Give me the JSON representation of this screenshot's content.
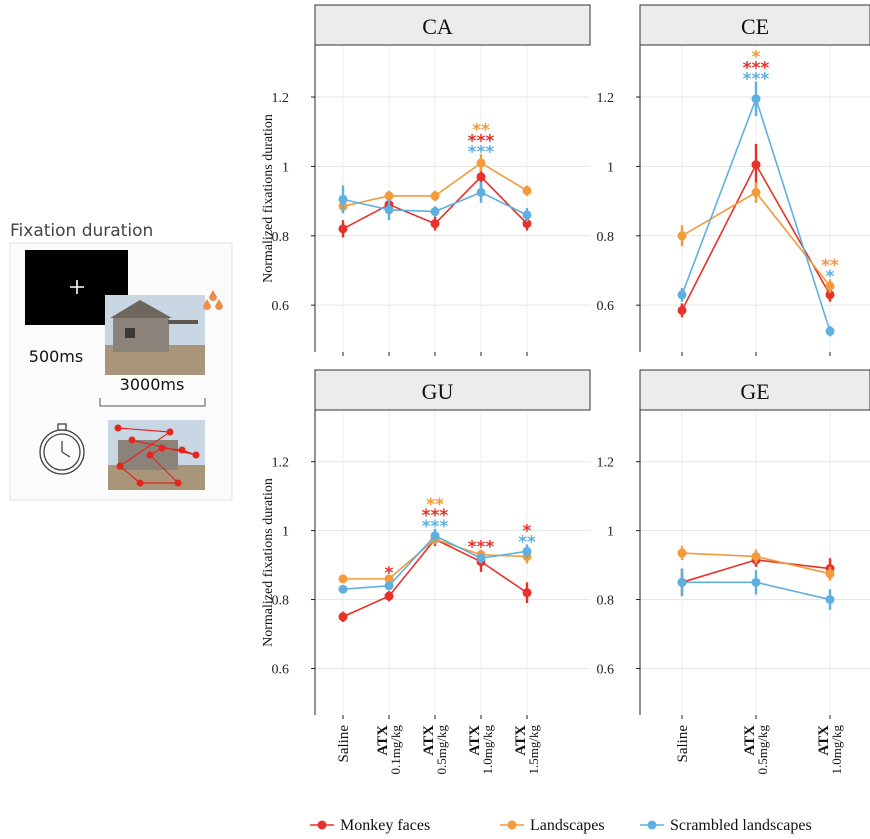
{
  "schematic": {
    "title": "Fixation duration",
    "fixation_time": "500ms",
    "image_time": "3000ms"
  },
  "chart_data": [
    {
      "type": "line",
      "title": "CA",
      "ylabel": "Normalized fixations duration",
      "categories": [
        null,
        null,
        null,
        null,
        null
      ],
      "ylim": [
        0.465,
        1.35
      ],
      "yticks": [
        0.6,
        0.8,
        1,
        1.2
      ],
      "grid": true,
      "series": [
        {
          "name": "Monkey faces",
          "color": "#e8312a",
          "values": [
            0.82,
            0.89,
            0.835,
            0.97,
            0.835
          ],
          "errors": [
            0.025,
            0.03,
            0.02,
            0.035,
            0.02
          ],
          "stars": [
            null,
            null,
            null,
            "***",
            null
          ]
        },
        {
          "name": "Landscapes",
          "color": "#f39a3a",
          "values": [
            0.885,
            0.915,
            0.915,
            1.01,
            0.93
          ],
          "errors": [
            0.02,
            0.015,
            0.015,
            0.025,
            0.015
          ],
          "stars": [
            null,
            null,
            null,
            "**",
            null
          ]
        },
        {
          "name": "Scrambled landscapes",
          "color": "#5fb0e0",
          "values": [
            0.905,
            0.875,
            0.87,
            0.925,
            0.86
          ],
          "errors": [
            0.04,
            0.03,
            0.015,
            0.03,
            0.02
          ],
          "stars": [
            null,
            null,
            null,
            "***",
            null
          ]
        }
      ]
    },
    {
      "type": "line",
      "title": "CE",
      "categories": [
        null,
        null,
        null
      ],
      "ylim": [
        0.465,
        1.35
      ],
      "yticks": [
        0.6,
        0.8,
        1,
        1.2
      ],
      "grid": true,
      "series": [
        {
          "name": "Monkey faces",
          "color": "#e8312a",
          "values": [
            0.585,
            1.005,
            0.63
          ],
          "errors": [
            0.02,
            0.06,
            0.02
          ],
          "stars": [
            null,
            "***",
            null
          ]
        },
        {
          "name": "Landscapes",
          "color": "#f39a3a",
          "values": [
            0.8,
            0.925,
            0.655
          ],
          "errors": [
            0.03,
            0.03,
            0.02
          ],
          "stars": [
            null,
            "*",
            "**"
          ]
        },
        {
          "name": "Scrambled landscapes",
          "color": "#5fb0e0",
          "values": [
            0.63,
            1.195,
            0.525
          ],
          "errors": [
            0.02,
            0.05,
            0.015
          ],
          "stars": [
            null,
            "***",
            "*"
          ]
        }
      ]
    },
    {
      "type": "line",
      "title": "GU",
      "ylabel": "Normalized fixations duration",
      "categories": [
        "Saline",
        "ATX 0.1mg/kg",
        "ATX 0.5mg/kg",
        "ATX 1.0mg/kg",
        "ATX 1.5mg/kg"
      ],
      "ylim": [
        0.465,
        1.35
      ],
      "yticks": [
        0.6,
        0.8,
        1,
        1.2
      ],
      "grid": true,
      "series": [
        {
          "name": "Monkey faces",
          "color": "#e8312a",
          "values": [
            0.75,
            0.81,
            0.975,
            0.91,
            0.82
          ],
          "errors": [
            0.015,
            0.015,
            0.02,
            0.03,
            0.03
          ],
          "stars": [
            null,
            "*",
            "***",
            "***",
            "*"
          ]
        },
        {
          "name": "Landscapes",
          "color": "#f39a3a",
          "values": [
            0.86,
            0.86,
            0.975,
            0.93,
            0.925
          ],
          "errors": [
            0.01,
            0.01,
            0.015,
            0.015,
            0.02
          ],
          "stars": [
            null,
            null,
            "**",
            null,
            null
          ]
        },
        {
          "name": "Scrambled landscapes",
          "color": "#5fb0e0",
          "values": [
            0.83,
            0.84,
            0.985,
            0.92,
            0.94
          ],
          "errors": [
            0.01,
            0.01,
            0.02,
            0.015,
            0.02
          ],
          "stars": [
            null,
            null,
            "***",
            null,
            "**"
          ]
        }
      ]
    },
    {
      "type": "line",
      "title": "GE",
      "categories": [
        "Saline",
        "ATX 0.5mg/kg",
        "ATX 1.0mg/kg"
      ],
      "ylim": [
        0.465,
        1.35
      ],
      "yticks": [
        0.6,
        0.8,
        1,
        1.2
      ],
      "grid": true,
      "series": [
        {
          "name": "Monkey faces",
          "color": "#e8312a",
          "values": [
            0.85,
            0.915,
            0.89
          ],
          "errors": [
            0.04,
            0.02,
            0.03
          ]
        },
        {
          "name": "Landscapes",
          "color": "#f39a3a",
          "values": [
            0.935,
            0.925,
            0.875
          ],
          "errors": [
            0.02,
            0.02,
            0.02
          ]
        },
        {
          "name": "Scrambled landscapes",
          "color": "#5fb0e0",
          "values": [
            0.85,
            0.85,
            0.8
          ],
          "errors": [
            0.04,
            0.035,
            0.03
          ]
        }
      ]
    }
  ]
}
